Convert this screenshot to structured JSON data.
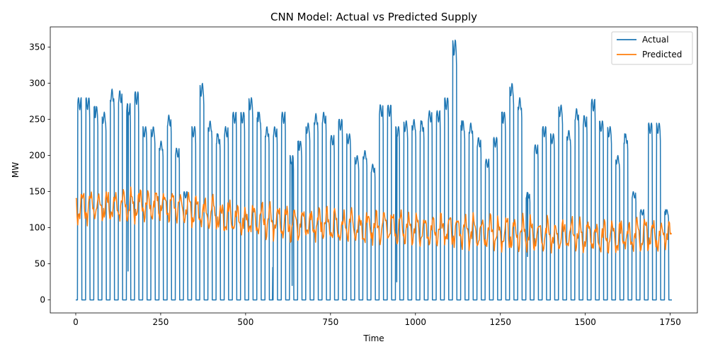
{
  "chart_data": {
    "type": "line",
    "title": "CNN Model: Actual vs Predicted Supply",
    "xlabel": "Time",
    "ylabel": "MW",
    "xlim": [
      -75,
      1830
    ],
    "ylim": [
      -18,
      378
    ],
    "xticks": [
      0,
      250,
      500,
      750,
      1000,
      1250,
      1500,
      1750
    ],
    "yticks": [
      0,
      50,
      100,
      150,
      200,
      250,
      300,
      350
    ],
    "grid": false,
    "legend": "top-right",
    "colors": {
      "actual": "#1f77b4",
      "predicted": "#ff7f0e"
    },
    "series": [
      {
        "name": "Actual",
        "color": "#1f77b4",
        "period": 24,
        "on_start_offset": 6,
        "on_duration": 12,
        "n_points": 1756,
        "daily_peaks": [
          280,
          280,
          268,
          260,
          292,
          290,
          272,
          288,
          240,
          240,
          220,
          256,
          210,
          150,
          240,
          300,
          248,
          230,
          240,
          260,
          260,
          280,
          260,
          240,
          240,
          260,
          200,
          220,
          245,
          258,
          260,
          228,
          250,
          230,
          200,
          207,
          188,
          270,
          270,
          240,
          248,
          250,
          248,
          262,
          262,
          280,
          360,
          248,
          245,
          225,
          195,
          225,
          260,
          300,
          280,
          150,
          215,
          240,
          230,
          270,
          235,
          265,
          255,
          278,
          248,
          240,
          200,
          230,
          150,
          125,
          245,
          245,
          125,
          243
        ],
        "dips": [
          {
            "x": 154,
            "y": 40
          },
          {
            "x": 580,
            "y": 45
          },
          {
            "x": 630,
            "y": 60
          },
          {
            "x": 637,
            "y": 20
          },
          {
            "x": 945,
            "y": 25
          },
          {
            "x": 1330,
            "y": 60
          }
        ]
      },
      {
        "name": "Predicted",
        "color": "#ff7f0e",
        "start_value": 140,
        "mean_trend": [
          {
            "x": 0,
            "y": 128
          },
          {
            "x": 250,
            "y": 132
          },
          {
            "x": 500,
            "y": 110
          },
          {
            "x": 750,
            "y": 103
          },
          {
            "x": 1000,
            "y": 98
          },
          {
            "x": 1250,
            "y": 92
          },
          {
            "x": 1500,
            "y": 88
          },
          {
            "x": 1750,
            "y": 90
          }
        ],
        "amplitude": 22,
        "min": 65,
        "max": 166
      }
    ]
  }
}
